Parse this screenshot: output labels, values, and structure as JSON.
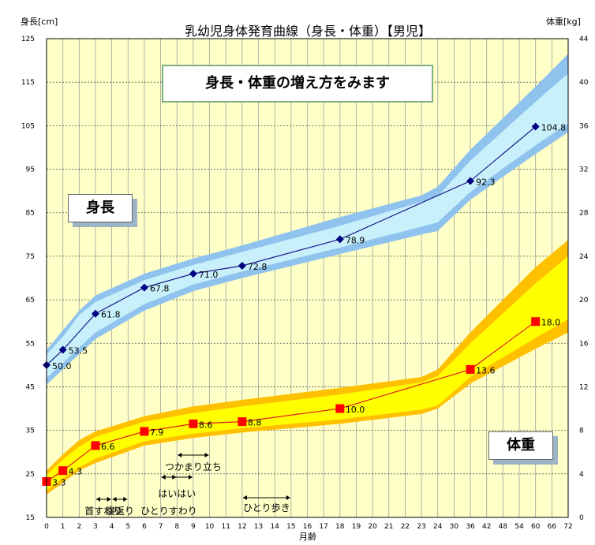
{
  "chart_data": {
    "type": "line",
    "title": "乳幼児身体発育曲線（身長・体重）【男児】",
    "subtitle": "身長・体重の増え方をみます",
    "xlabel": "月齢",
    "ylabel_left": "身長[cm]",
    "ylabel_right": "体重[kg]",
    "x_ticks": [
      "0",
      "1",
      "2",
      "3",
      "4",
      "5",
      "6",
      "7",
      "8",
      "9",
      "10",
      "11",
      "12",
      "13",
      "14",
      "15",
      "16",
      "17",
      "18",
      "19",
      "20",
      "21",
      "22",
      "23",
      "24",
      "30",
      "36",
      "42",
      "48",
      "54",
      "60",
      "66",
      "72"
    ],
    "y_left_ticks": [
      15,
      25,
      35,
      45,
      55,
      65,
      75,
      85,
      95,
      105,
      115,
      125
    ],
    "y_right_ticks": [
      0,
      4,
      8,
      12,
      16,
      20,
      24,
      28,
      32,
      36,
      40,
      44
    ],
    "y_left_range": [
      15,
      125
    ],
    "y_right_range": [
      0,
      44
    ],
    "grid": true,
    "series": [
      {
        "name": "身長",
        "axis": "left",
        "color": "#1a1a8c",
        "band_outer_color": "#8fc3ee",
        "band_inner_color": "#c8f0fa",
        "points": [
          {
            "age": "0",
            "value": 50.0,
            "label": "50.0"
          },
          {
            "age": "1",
            "value": 53.5,
            "label": "53.5"
          },
          {
            "age": "3",
            "value": 61.8,
            "label": "61.8"
          },
          {
            "age": "6",
            "value": 67.8,
            "label": "67.8"
          },
          {
            "age": "9",
            "value": 71.0,
            "label": "71.0"
          },
          {
            "age": "12",
            "value": 72.8,
            "label": "72.8"
          },
          {
            "age": "18",
            "value": 78.9,
            "label": "78.9"
          },
          {
            "age": "36",
            "value": 92.3,
            "label": "92.3"
          },
          {
            "age": "60",
            "value": 104.8,
            "label": "104.8"
          }
        ]
      },
      {
        "name": "体重",
        "axis": "right",
        "color": "#e02020",
        "band_outer_color": "#ffc000",
        "band_inner_color": "#ffff00",
        "points": [
          {
            "age": "0",
            "value": 3.3,
            "label": "3.3"
          },
          {
            "age": "1",
            "value": 4.3,
            "label": "4.3"
          },
          {
            "age": "3",
            "value": 6.6,
            "label": "6.6"
          },
          {
            "age": "6",
            "value": 7.9,
            "label": "7.9"
          },
          {
            "age": "9",
            "value": 8.6,
            "label": "8.6"
          },
          {
            "age": "12",
            "value": 8.8,
            "label": "8.8"
          },
          {
            "age": "18",
            "value": 10.0,
            "label": "10.0"
          },
          {
            "age": "36",
            "value": 13.6,
            "label": "13.6"
          },
          {
            "age": "60",
            "value": 18.0,
            "label": "18.0"
          }
        ]
      }
    ],
    "height_band": {
      "ages": [
        "0",
        "1",
        "2",
        "3",
        "6",
        "9",
        "12",
        "18",
        "23",
        "24",
        "36",
        "60",
        "72"
      ],
      "p3": [
        45.5,
        49.0,
        52.5,
        56.0,
        62.5,
        67.0,
        70.0,
        75.5,
        80.0,
        80.8,
        88.0,
        98.5,
        103.5
      ],
      "p10": [
        47.0,
        50.5,
        54.0,
        57.5,
        64.0,
        68.5,
        71.5,
        77.0,
        81.8,
        82.8,
        89.8,
        100.5,
        105.5
      ],
      "p90": [
        52.5,
        56.5,
        61.5,
        64.5,
        69.5,
        73.0,
        76.0,
        82.0,
        87.5,
        88.8,
        97.0,
        110.5,
        117.0
      ],
      "p97": [
        53.5,
        58.0,
        62.5,
        66.0,
        71.0,
        74.5,
        77.5,
        84.0,
        89.0,
        91.0,
        99.5,
        114.0,
        121.5
      ]
    },
    "weight_band": {
      "ages": [
        "0",
        "1",
        "2",
        "3",
        "6",
        "9",
        "12",
        "18",
        "23",
        "24",
        "36",
        "60",
        "72"
      ],
      "p3": [
        2.1,
        3.2,
        4.3,
        5.0,
        6.6,
        7.3,
        7.8,
        8.6,
        9.5,
        10.0,
        12.3,
        15.5,
        17.0
      ],
      "p10": [
        2.5,
        3.6,
        4.6,
        5.4,
        7.0,
        7.7,
        8.2,
        9.0,
        9.9,
        10.3,
        12.9,
        16.5,
        18.2
      ],
      "p90": [
        3.9,
        5.3,
        6.5,
        7.4,
        8.8,
        9.6,
        10.2,
        11.3,
        12.4,
        13.0,
        16.0,
        21.5,
        24.0
      ],
      "p97": [
        4.3,
        5.8,
        7.1,
        7.9,
        9.3,
        10.2,
        10.8,
        11.9,
        12.9,
        13.6,
        17.0,
        23.0,
        25.5
      ]
    },
    "milestones": [
      {
        "label": "首すわり",
        "from": "3",
        "to": "4"
      },
      {
        "label": "寝返り",
        "from": "4",
        "to": "5"
      },
      {
        "label": "ひとりすわり",
        "from": "7",
        "to": "8"
      },
      {
        "label": "はいはい",
        "from": "7",
        "to": "9"
      },
      {
        "label": "つかまり立ち",
        "from": "8",
        "to": "10"
      },
      {
        "label": "ひとり歩き",
        "from": "12",
        "to": "15"
      }
    ],
    "region_labels": {
      "height": "身長",
      "weight": "体重"
    }
  }
}
